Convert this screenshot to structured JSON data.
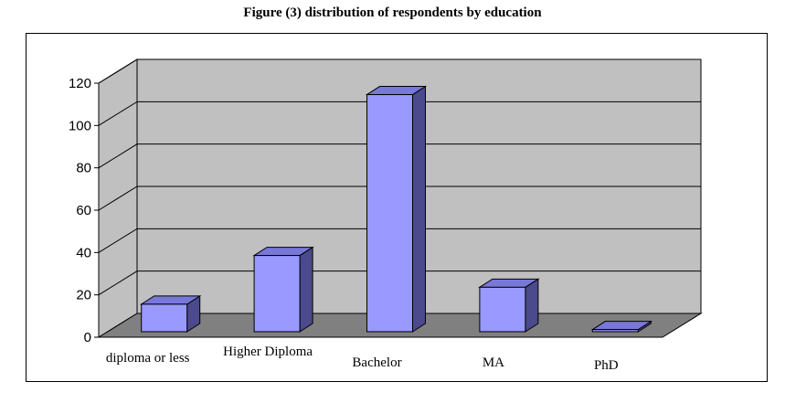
{
  "chart_data": {
    "type": "bar",
    "title": "Figure (3) distribution of respondents by education",
    "categories": [
      "diploma or less",
      "Higher Diploma",
      "Bachelor",
      "MA",
      "PhD"
    ],
    "values": [
      13,
      36,
      112,
      21,
      1
    ],
    "xlabel": "",
    "ylabel": "",
    "ylim": [
      0,
      120
    ],
    "yticks": [
      0,
      20,
      40,
      60,
      80,
      100,
      120
    ],
    "grid": true,
    "legend": "none",
    "style": "3d-column",
    "colors": {
      "bar_front": "#9999ff",
      "bar_side": "#4a4a8c",
      "bar_top": "#7878d8",
      "wall": "#c0c0c0",
      "floor": "#808080"
    }
  }
}
